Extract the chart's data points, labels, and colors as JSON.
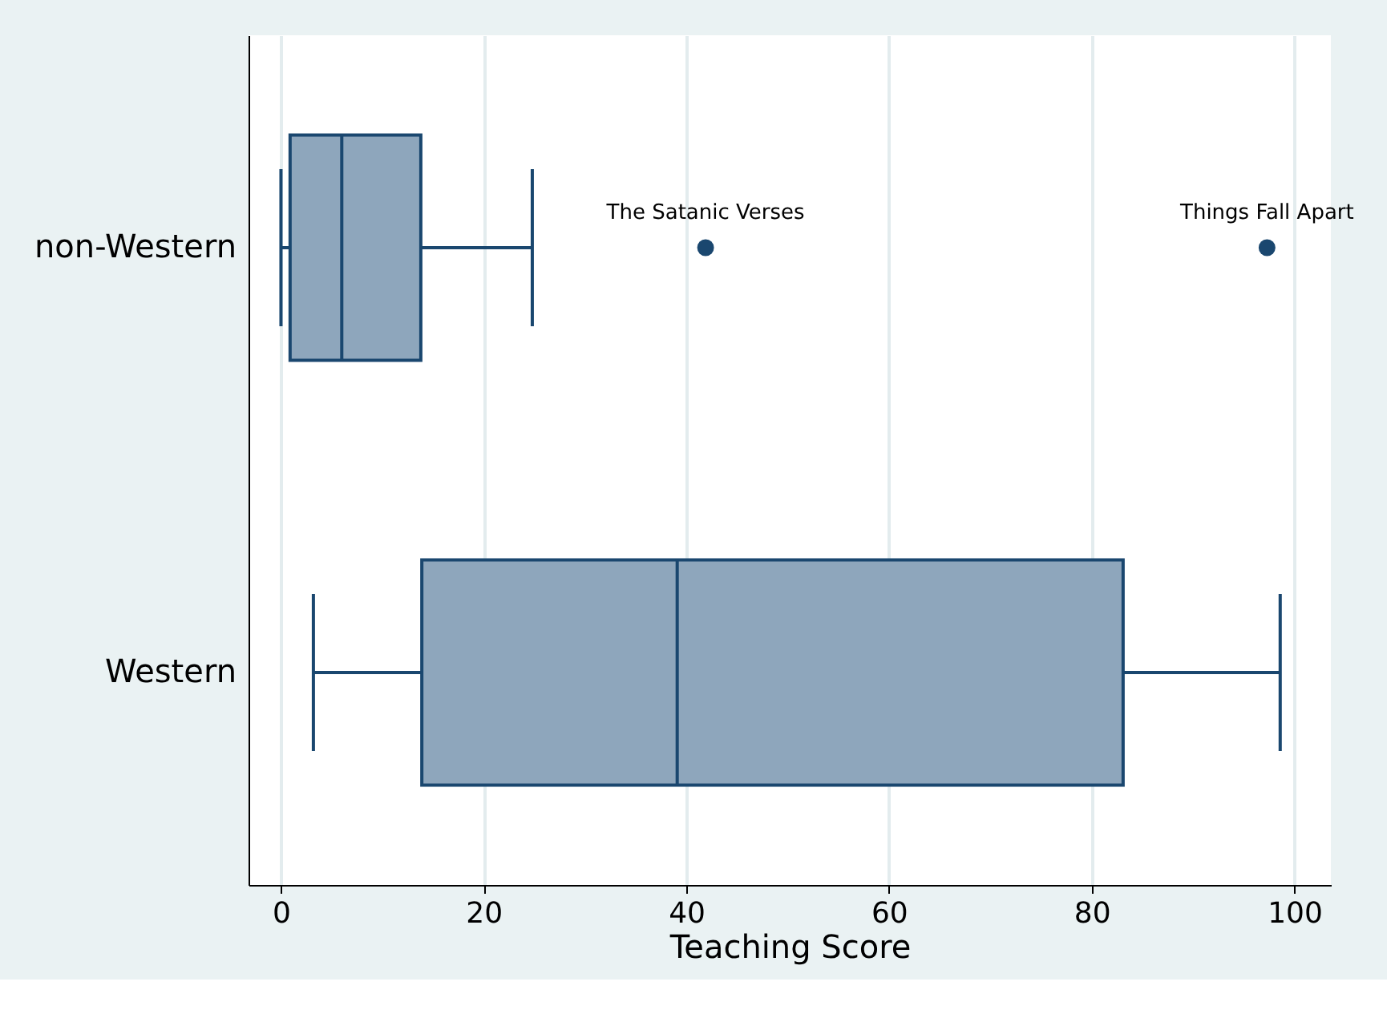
{
  "chart_data": {
    "type": "box",
    "xlabel": "Teaching Score",
    "categories": [
      "non-Western",
      "Western"
    ],
    "orientation": "horizontal",
    "boxes": [
      {
        "low": 0,
        "q1": 0.9,
        "median": 6.0,
        "q3": 13.8,
        "high": 24.8,
        "outliers": [
          41.9,
          97.3
        ]
      },
      {
        "low": 3.2,
        "q1": 13.9,
        "median": 39.1,
        "q3": 83.1,
        "high": 98.6
      }
    ],
    "color": "#8ea6bc",
    "xlim": [
      -3.2,
      103.6
    ],
    "xticks": [
      0,
      20,
      40,
      60,
      80,
      100
    ],
    "grid": "x",
    "annotations": [
      "The Satanic Verses",
      "Things Fall Apart"
    ]
  }
}
